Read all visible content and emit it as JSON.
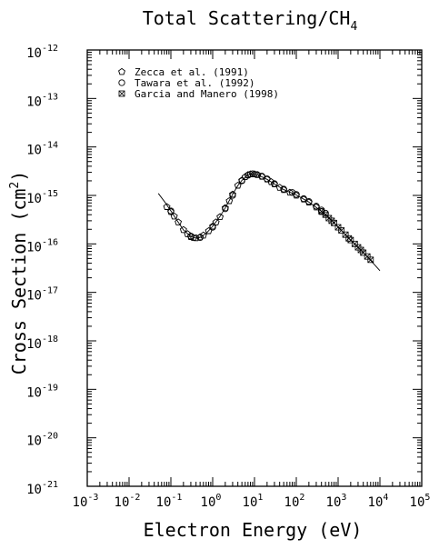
{
  "chart_data": {
    "type": "scatter",
    "title_main": "Total Scattering/CH",
    "title_sub": "4",
    "xlabel": "Electron Energy (eV)",
    "ylabel_main": "Cross Section (cm",
    "ylabel_sup": "2",
    "ylabel_close": ")",
    "x_scale": "log",
    "y_scale": "log",
    "xlim": [
      0.001,
      100000
    ],
    "ylim": [
      1e-21,
      1e-12
    ],
    "x_ticks": [
      {
        "base": "10",
        "exp": "-3",
        "value": 0.001
      },
      {
        "base": "10",
        "exp": "-2",
        "value": 0.01
      },
      {
        "base": "10",
        "exp": "-1",
        "value": 0.1
      },
      {
        "base": "10",
        "exp": "0",
        "value": 1
      },
      {
        "base": "10",
        "exp": "1",
        "value": 10
      },
      {
        "base": "10",
        "exp": "2",
        "value": 100
      },
      {
        "base": "10",
        "exp": "3",
        "value": 1000
      },
      {
        "base": "10",
        "exp": "4",
        "value": 10000
      },
      {
        "base": "10",
        "exp": "5",
        "value": 100000
      }
    ],
    "y_ticks": [
      {
        "base": "10",
        "exp": "-12",
        "value": 1e-12
      },
      {
        "base": "10",
        "exp": "-13",
        "value": 1e-13
      },
      {
        "base": "10",
        "exp": "-14",
        "value": 1e-14
      },
      {
        "base": "10",
        "exp": "-15",
        "value": 1e-15
      },
      {
        "base": "10",
        "exp": "-16",
        "value": 1e-16
      },
      {
        "base": "10",
        "exp": "-17",
        "value": 1e-17
      },
      {
        "base": "10",
        "exp": "-18",
        "value": 1e-18
      },
      {
        "base": "10",
        "exp": "-19",
        "value": 1e-19
      },
      {
        "base": "10",
        "exp": "-20",
        "value": 1e-20
      },
      {
        "base": "10",
        "exp": "-21",
        "value": 1e-21
      }
    ],
    "legend_position": "top-left",
    "grid": false,
    "series": [
      {
        "name": "Zecca et al. (1991)",
        "marker": "pentagon",
        "points": [
          [
            0.08,
            5.8e-16
          ],
          [
            0.1,
            4.6e-16
          ],
          [
            0.12,
            3.7e-16
          ],
          [
            0.15,
            2.8e-16
          ],
          [
            0.2,
            1.95e-16
          ],
          [
            0.25,
            1.6e-16
          ],
          [
            0.3,
            1.4e-16
          ],
          [
            0.35,
            1.33e-16
          ],
          [
            0.4,
            1.32e-16
          ],
          [
            0.5,
            1.38e-16
          ],
          [
            0.6,
            1.5e-16
          ],
          [
            0.8,
            1.85e-16
          ],
          [
            1.0,
            2.3e-16
          ],
          [
            1.2,
            2.8e-16
          ],
          [
            1.5,
            3.6e-16
          ],
          [
            2.0,
            5.5e-16
          ],
          [
            2.5,
            7.7e-16
          ],
          [
            3.0,
            1.05e-15
          ],
          [
            4.0,
            1.6e-15
          ],
          [
            5.0,
            2.05e-15
          ],
          [
            6.0,
            2.4e-15
          ],
          [
            7.0,
            2.65e-15
          ],
          [
            8.0,
            2.75e-15
          ],
          [
            10,
            2.75e-15
          ],
          [
            12,
            2.65e-15
          ],
          [
            15,
            2.45e-15
          ],
          [
            20,
            2.15e-15
          ],
          [
            25,
            1.9e-15
          ],
          [
            30,
            1.7e-15
          ],
          [
            40,
            1.45e-15
          ],
          [
            50,
            1.3e-15
          ],
          [
            70,
            1.15e-15
          ],
          [
            100,
            1e-15
          ],
          [
            150,
            8.3e-16
          ],
          [
            200,
            7.2e-16
          ],
          [
            300,
            5.7e-16
          ],
          [
            400,
            4.6e-16
          ]
        ]
      },
      {
        "name": "Tawara et al. (1992)",
        "marker": "circle",
        "points": [
          [
            0.1,
            4.8e-16
          ],
          [
            0.3,
            1.45e-16
          ],
          [
            0.5,
            1.35e-16
          ],
          [
            1.0,
            2.2e-16
          ],
          [
            2.0,
            5.3e-16
          ],
          [
            3.0,
            1e-15
          ],
          [
            5.0,
            2e-15
          ],
          [
            7.0,
            2.6e-15
          ],
          [
            9.0,
            2.8e-15
          ],
          [
            11,
            2.7e-15
          ],
          [
            15,
            2.5e-15
          ],
          [
            20,
            2.2e-15
          ],
          [
            30,
            1.75e-15
          ],
          [
            50,
            1.35e-15
          ],
          [
            80,
            1.15e-15
          ],
          [
            100,
            1.05e-15
          ],
          [
            150,
            8.6e-16
          ],
          [
            200,
            7.5e-16
          ],
          [
            300,
            6e-16
          ],
          [
            400,
            5e-16
          ],
          [
            500,
            4.3e-16
          ]
        ]
      },
      {
        "name": "Garcia and Manero (1998)",
        "marker": "cross-box",
        "points": [
          [
            400,
            4.7e-16
          ],
          [
            500,
            4e-16
          ],
          [
            600,
            3.4e-16
          ],
          [
            700,
            3e-16
          ],
          [
            800,
            2.7e-16
          ],
          [
            1000,
            2.2e-16
          ],
          [
            1200,
            1.9e-16
          ],
          [
            1500,
            1.55e-16
          ],
          [
            1800,
            1.3e-16
          ],
          [
            2000,
            1.2e-16
          ],
          [
            2500,
            1e-16
          ],
          [
            3000,
            8.5e-17
          ],
          [
            3500,
            7.5e-17
          ],
          [
            4000,
            6.6e-17
          ],
          [
            5000,
            5.5e-17
          ],
          [
            6000,
            4.7e-17
          ]
        ]
      }
    ],
    "fit_curve": [
      [
        0.05,
        1.1e-15
      ],
      [
        0.07,
        7.5e-16
      ],
      [
        0.1,
        4.8e-16
      ],
      [
        0.15,
        2.8e-16
      ],
      [
        0.2,
        1.95e-16
      ],
      [
        0.3,
        1.42e-16
      ],
      [
        0.4,
        1.32e-16
      ],
      [
        0.5,
        1.36e-16
      ],
      [
        0.7,
        1.65e-16
      ],
      [
        1.0,
        2.3e-16
      ],
      [
        1.5,
        3.7e-16
      ],
      [
        2.0,
        5.5e-16
      ],
      [
        3.0,
        1.05e-15
      ],
      [
        4.0,
        1.6e-15
      ],
      [
        5.0,
        2.05e-15
      ],
      [
        7.0,
        2.65e-15
      ],
      [
        9.0,
        2.8e-15
      ],
      [
        12,
        2.65e-15
      ],
      [
        20,
        2.15e-15
      ],
      [
        30,
        1.72e-15
      ],
      [
        50,
        1.32e-15
      ],
      [
        100,
        1.02e-15
      ],
      [
        200,
        7.3e-16
      ],
      [
        500,
        4.1e-16
      ],
      [
        1000,
        2.25e-16
      ],
      [
        2000,
        1.2e-16
      ],
      [
        5000,
        5.4e-17
      ],
      [
        10000,
        2.8e-17
      ]
    ]
  }
}
